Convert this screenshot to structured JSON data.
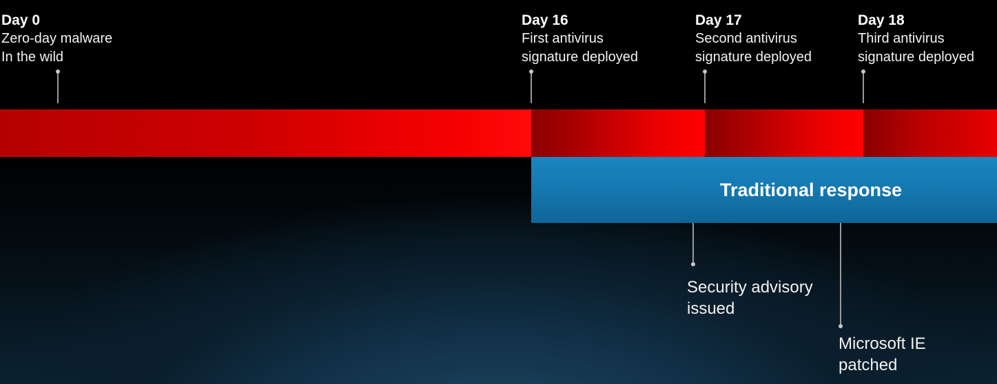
{
  "milestones": [
    {
      "day": "Day 0",
      "lines": [
        "Zero-day malware",
        "In the wild"
      ]
    },
    {
      "day": "Day 16",
      "lines": [
        "First antivirus",
        "signature deployed"
      ]
    },
    {
      "day": "Day 17",
      "lines": [
        "Second antivirus",
        "signature deployed"
      ]
    },
    {
      "day": "Day 18",
      "lines": [
        "Third antivirus",
        "signature deployed"
      ]
    }
  ],
  "response_bar": {
    "label": "Traditional response",
    "color": "#1476ad"
  },
  "annotations": [
    {
      "lines": [
        "Security advisory",
        "issued"
      ]
    },
    {
      "lines": [
        "Microsoft IE",
        "patched"
      ]
    }
  ],
  "colors": {
    "timeline_red": "#ff0000",
    "background": "#000000"
  }
}
